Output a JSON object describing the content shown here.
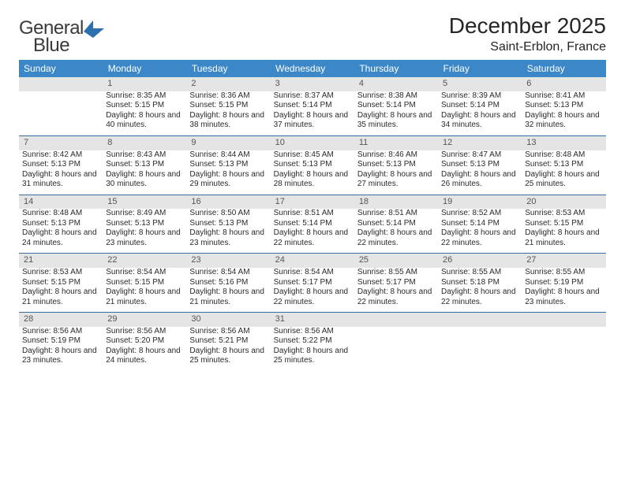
{
  "logo": {
    "word1": "General",
    "word2": "Blue"
  },
  "title": "December 2025",
  "location": "Saint-Erblon, France",
  "colors": {
    "header_bg": "#3b87c8",
    "header_fg": "#ffffff",
    "daybar_bg": "#e5e5e5",
    "daybar_fg": "#555555",
    "rule": "#3b6fa0",
    "logo_accent": "#2e6fb0",
    "text": "#262626"
  },
  "typography": {
    "title_fontsize": 28,
    "location_fontsize": 16,
    "dayheader_fontsize": 12,
    "cell_fontsize": 10
  },
  "calendar": {
    "type": "table",
    "columns": [
      "Sunday",
      "Monday",
      "Tuesday",
      "Wednesday",
      "Thursday",
      "Friday",
      "Saturday"
    ],
    "first_weekday_index": 1,
    "days": [
      {
        "n": 1,
        "sunrise": "8:35 AM",
        "sunset": "5:15 PM",
        "daylight": "8 hours and 40 minutes."
      },
      {
        "n": 2,
        "sunrise": "8:36 AM",
        "sunset": "5:15 PM",
        "daylight": "8 hours and 38 minutes."
      },
      {
        "n": 3,
        "sunrise": "8:37 AM",
        "sunset": "5:14 PM",
        "daylight": "8 hours and 37 minutes."
      },
      {
        "n": 4,
        "sunrise": "8:38 AM",
        "sunset": "5:14 PM",
        "daylight": "8 hours and 35 minutes."
      },
      {
        "n": 5,
        "sunrise": "8:39 AM",
        "sunset": "5:14 PM",
        "daylight": "8 hours and 34 minutes."
      },
      {
        "n": 6,
        "sunrise": "8:41 AM",
        "sunset": "5:13 PM",
        "daylight": "8 hours and 32 minutes."
      },
      {
        "n": 7,
        "sunrise": "8:42 AM",
        "sunset": "5:13 PM",
        "daylight": "8 hours and 31 minutes."
      },
      {
        "n": 8,
        "sunrise": "8:43 AM",
        "sunset": "5:13 PM",
        "daylight": "8 hours and 30 minutes."
      },
      {
        "n": 9,
        "sunrise": "8:44 AM",
        "sunset": "5:13 PM",
        "daylight": "8 hours and 29 minutes."
      },
      {
        "n": 10,
        "sunrise": "8:45 AM",
        "sunset": "5:13 PM",
        "daylight": "8 hours and 28 minutes."
      },
      {
        "n": 11,
        "sunrise": "8:46 AM",
        "sunset": "5:13 PM",
        "daylight": "8 hours and 27 minutes."
      },
      {
        "n": 12,
        "sunrise": "8:47 AM",
        "sunset": "5:13 PM",
        "daylight": "8 hours and 26 minutes."
      },
      {
        "n": 13,
        "sunrise": "8:48 AM",
        "sunset": "5:13 PM",
        "daylight": "8 hours and 25 minutes."
      },
      {
        "n": 14,
        "sunrise": "8:48 AM",
        "sunset": "5:13 PM",
        "daylight": "8 hours and 24 minutes."
      },
      {
        "n": 15,
        "sunrise": "8:49 AM",
        "sunset": "5:13 PM",
        "daylight": "8 hours and 23 minutes."
      },
      {
        "n": 16,
        "sunrise": "8:50 AM",
        "sunset": "5:13 PM",
        "daylight": "8 hours and 23 minutes."
      },
      {
        "n": 17,
        "sunrise": "8:51 AM",
        "sunset": "5:14 PM",
        "daylight": "8 hours and 22 minutes."
      },
      {
        "n": 18,
        "sunrise": "8:51 AM",
        "sunset": "5:14 PM",
        "daylight": "8 hours and 22 minutes."
      },
      {
        "n": 19,
        "sunrise": "8:52 AM",
        "sunset": "5:14 PM",
        "daylight": "8 hours and 22 minutes."
      },
      {
        "n": 20,
        "sunrise": "8:53 AM",
        "sunset": "5:15 PM",
        "daylight": "8 hours and 21 minutes."
      },
      {
        "n": 21,
        "sunrise": "8:53 AM",
        "sunset": "5:15 PM",
        "daylight": "8 hours and 21 minutes."
      },
      {
        "n": 22,
        "sunrise": "8:54 AM",
        "sunset": "5:15 PM",
        "daylight": "8 hours and 21 minutes."
      },
      {
        "n": 23,
        "sunrise": "8:54 AM",
        "sunset": "5:16 PM",
        "daylight": "8 hours and 21 minutes."
      },
      {
        "n": 24,
        "sunrise": "8:54 AM",
        "sunset": "5:17 PM",
        "daylight": "8 hours and 22 minutes."
      },
      {
        "n": 25,
        "sunrise": "8:55 AM",
        "sunset": "5:17 PM",
        "daylight": "8 hours and 22 minutes."
      },
      {
        "n": 26,
        "sunrise": "8:55 AM",
        "sunset": "5:18 PM",
        "daylight": "8 hours and 22 minutes."
      },
      {
        "n": 27,
        "sunrise": "8:55 AM",
        "sunset": "5:19 PM",
        "daylight": "8 hours and 23 minutes."
      },
      {
        "n": 28,
        "sunrise": "8:56 AM",
        "sunset": "5:19 PM",
        "daylight": "8 hours and 23 minutes."
      },
      {
        "n": 29,
        "sunrise": "8:56 AM",
        "sunset": "5:20 PM",
        "daylight": "8 hours and 24 minutes."
      },
      {
        "n": 30,
        "sunrise": "8:56 AM",
        "sunset": "5:21 PM",
        "daylight": "8 hours and 25 minutes."
      },
      {
        "n": 31,
        "sunrise": "8:56 AM",
        "sunset": "5:22 PM",
        "daylight": "8 hours and 25 minutes."
      }
    ],
    "labels": {
      "sunrise": "Sunrise:",
      "sunset": "Sunset:",
      "daylight": "Daylight:"
    }
  }
}
